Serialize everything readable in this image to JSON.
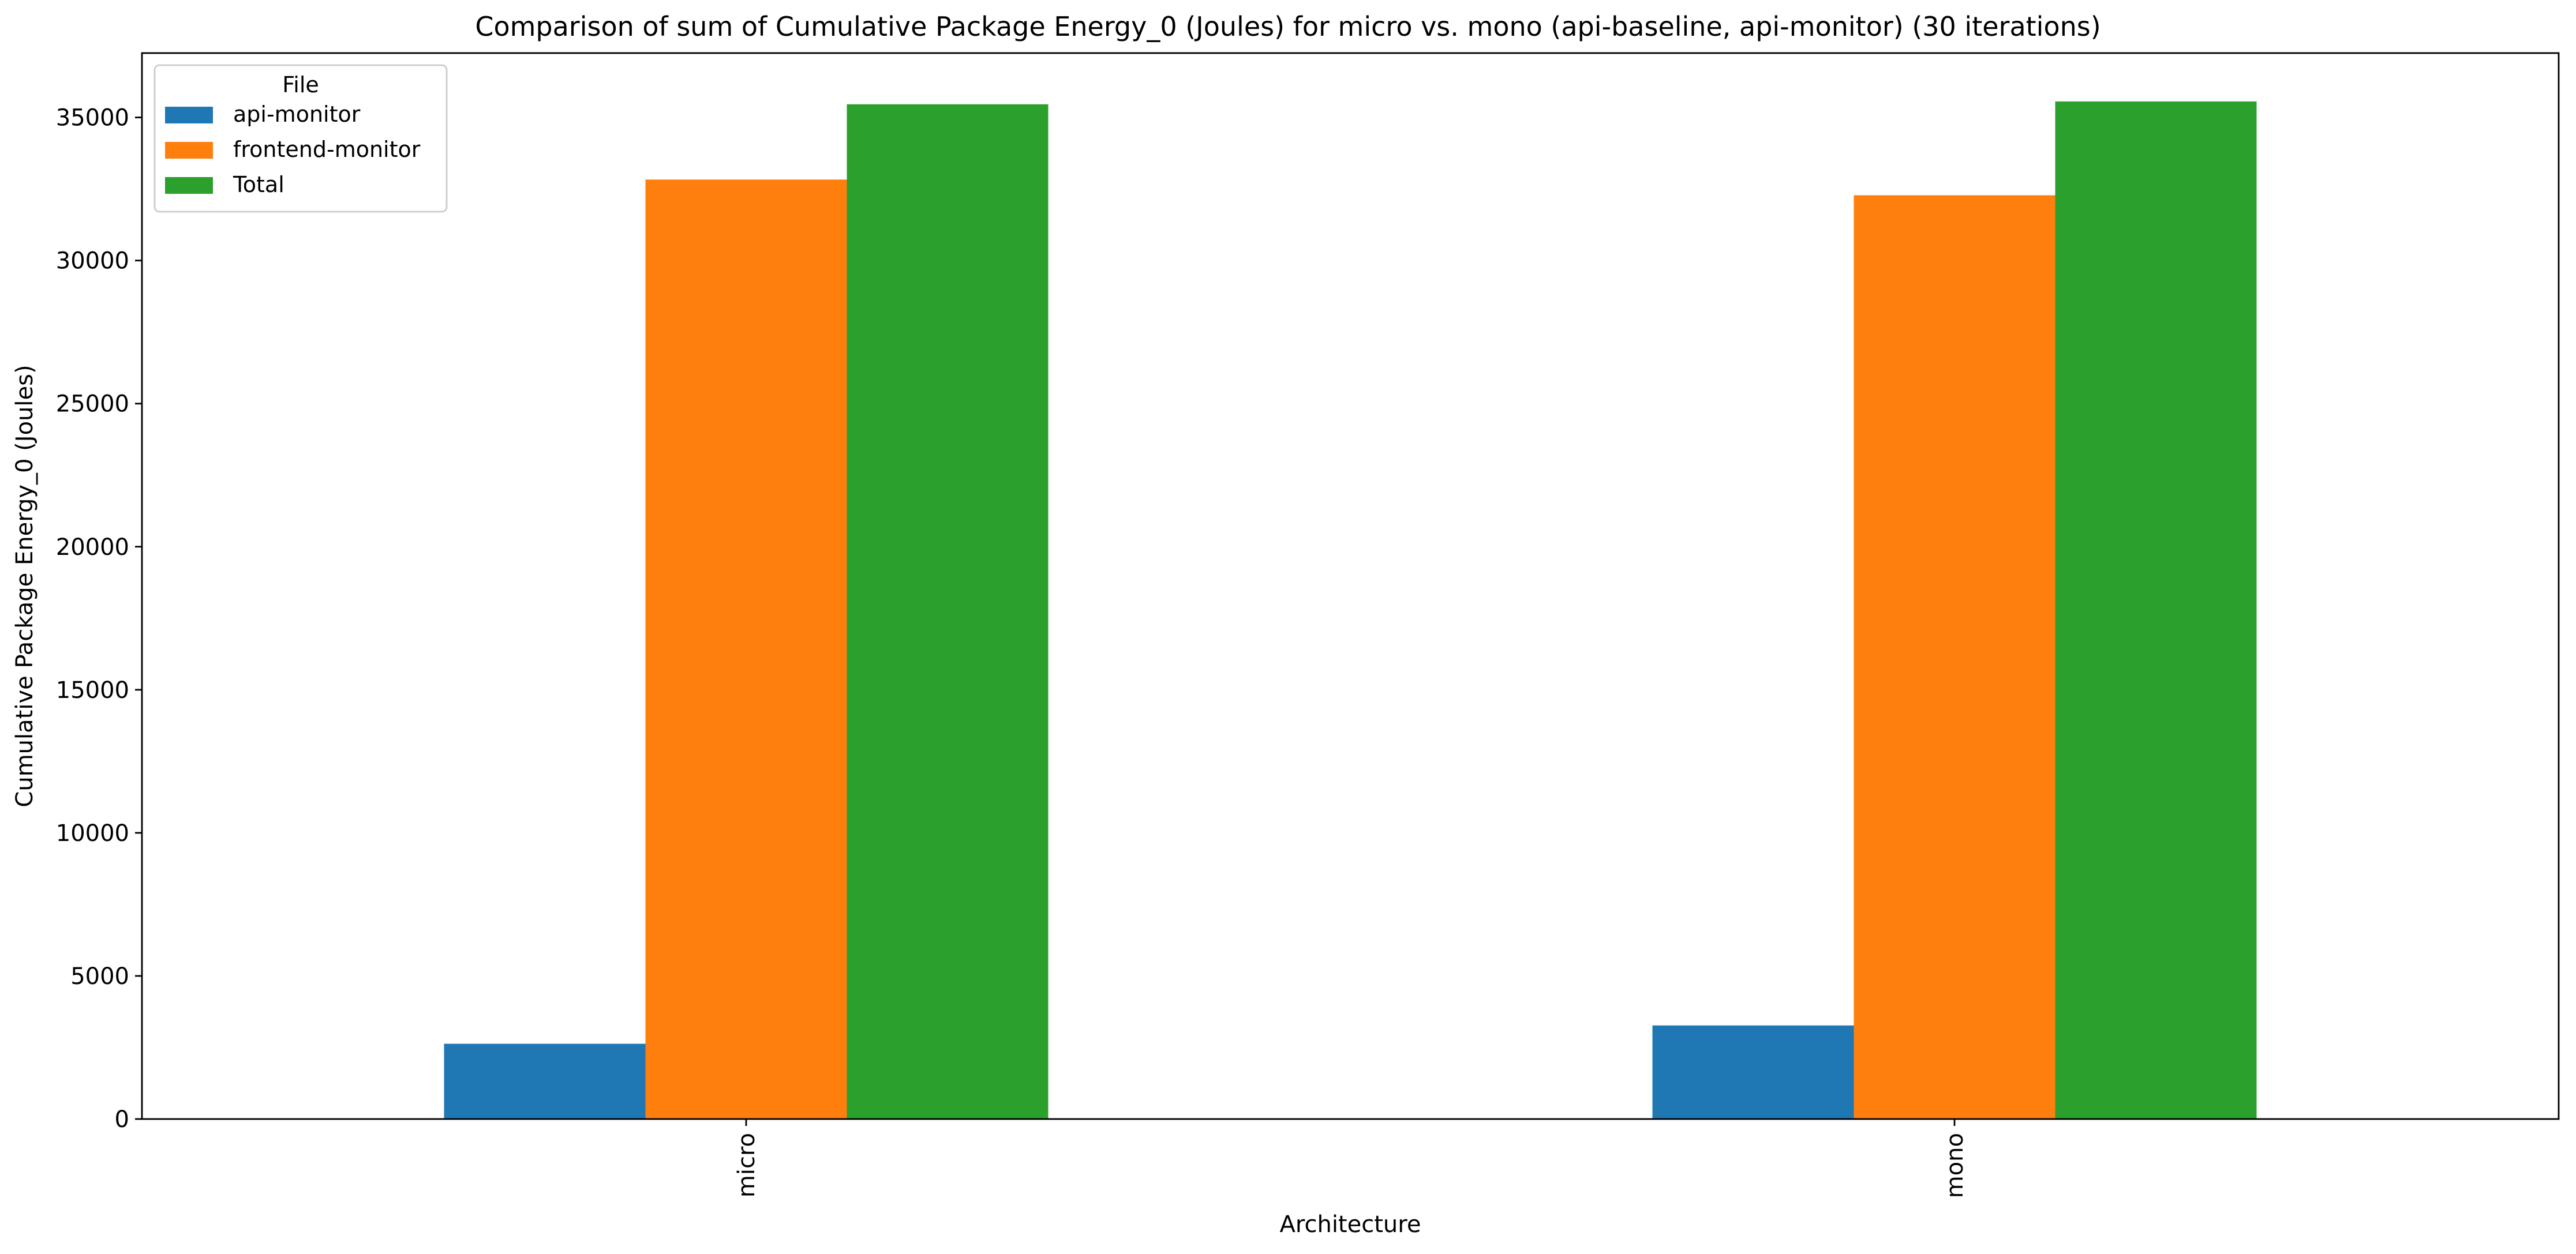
{
  "chart_data": {
    "type": "bar",
    "title": "Comparison of sum of Cumulative Package Energy_0 (Joules) for micro vs. mono (api-baseline, api-monitor) (30 iterations)",
    "xlabel": "Architecture",
    "ylabel": "Cumulative Package Energy_0 (Joules)",
    "categories": [
      "micro",
      "mono"
    ],
    "ylim": [
      0,
      37250
    ],
    "yticks": [
      0,
      5000,
      10000,
      15000,
      20000,
      25000,
      30000,
      35000
    ],
    "grid": false,
    "legend": {
      "title": "File",
      "position": "top-left"
    },
    "series": [
      {
        "name": "api-monitor",
        "color": "#1f77b4",
        "values": [
          2630,
          3270
        ]
      },
      {
        "name": "frontend-monitor",
        "color": "#ff7f0e",
        "values": [
          32830,
          32280
        ]
      },
      {
        "name": "Total",
        "color": "#2ca02c",
        "values": [
          35460,
          35560
        ]
      }
    ]
  }
}
